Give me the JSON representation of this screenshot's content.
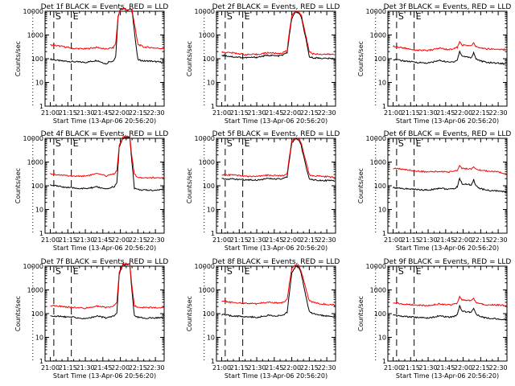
{
  "colors": {
    "events": "#000000",
    "lld": "#ff0000",
    "axes": "#000000"
  },
  "shared": {
    "ylabel": "Counts/sec",
    "xlabel": "Start Time (13-Apr-06 20:56:20)",
    "x_ticks": [
      "21:00",
      "21:15",
      "21:30",
      "21:45",
      "22:00",
      "22:15",
      "22:30"
    ],
    "y_ticks": [
      "1",
      "10",
      "100",
      "1000",
      "10000"
    ],
    "markers": [
      "S",
      "E"
    ]
  },
  "chart_data": [
    {
      "type": "line",
      "title": "Det 1f BLACK = Events, RED = LLD",
      "ylim": [
        1,
        10000
      ],
      "yscale": "log",
      "x_unit": "minutes after 21:00",
      "xlim": [
        0,
        97
      ],
      "event_lines": [
        -15,
        3,
        18
      ],
      "markers": {
        "S": 3,
        "E": 18
      },
      "series": [
        {
          "name": "Events",
          "color": "#000000",
          "x": [
            0,
            10,
            20,
            30,
            40,
            48,
            50,
            54,
            56,
            58,
            60,
            63,
            66,
            68,
            70,
            73,
            75,
            78,
            80,
            85,
            90,
            97
          ],
          "y": [
            95,
            80,
            75,
            70,
            85,
            60,
            75,
            80,
            120,
            5500,
            12000,
            13000,
            11000,
            12000,
            12000,
            500,
            90,
            85,
            80,
            80,
            75,
            70
          ]
        },
        {
          "name": "LLD",
          "color": "#ff0000",
          "x": [
            0,
            10,
            20,
            30,
            40,
            48,
            50,
            54,
            56,
            58,
            60,
            63,
            66,
            68,
            70,
            73,
            75,
            78,
            80,
            85,
            90,
            97
          ],
          "y": [
            380,
            330,
            270,
            260,
            300,
            250,
            270,
            290,
            450,
            6000,
            12000,
            13000,
            11000,
            12000,
            12000,
            1500,
            400,
            350,
            310,
            300,
            280,
            270
          ]
        }
      ]
    },
    {
      "type": "line",
      "title": "Det 2f BLACK = Events, RED = LLD",
      "ylim": [
        1,
        10000
      ],
      "yscale": "log",
      "x_unit": "minutes after 21:00",
      "xlim": [
        0,
        97
      ],
      "event_lines": [
        -15,
        3,
        18
      ],
      "markers": {
        "S": 3,
        "E": 18
      },
      "series": [
        {
          "name": "Events",
          "color": "#000000",
          "x": [
            0,
            10,
            20,
            30,
            40,
            48,
            52,
            56,
            58,
            60,
            63,
            65,
            68,
            72,
            75,
            78,
            85,
            97
          ],
          "y": [
            140,
            120,
            110,
            115,
            140,
            130,
            140,
            180,
            1000,
            5000,
            9000,
            9000,
            6000,
            700,
            120,
            110,
            105,
            100
          ]
        },
        {
          "name": "LLD",
          "color": "#ff0000",
          "x": [
            0,
            10,
            20,
            30,
            40,
            48,
            52,
            56,
            58,
            60,
            63,
            65,
            68,
            72,
            75,
            78,
            85,
            97
          ],
          "y": [
            190,
            175,
            150,
            150,
            180,
            165,
            175,
            220,
            1500,
            6500,
            9500,
            9500,
            7500,
            1000,
            200,
            160,
            155,
            150
          ]
        }
      ]
    },
    {
      "type": "line",
      "title": "Det 3f BLACK = Events, RED = LLD",
      "ylim": [
        1,
        10000
      ],
      "yscale": "log",
      "x_unit": "minutes after 21:00",
      "xlim": [
        0,
        97
      ],
      "event_lines": [
        -15,
        3,
        18
      ],
      "markers": {
        "S": 3,
        "E": 18
      },
      "series": [
        {
          "name": "Events",
          "color": "#000000",
          "x": [
            0,
            10,
            20,
            30,
            40,
            48,
            52,
            55,
            57,
            59,
            63,
            67,
            69,
            71,
            75,
            80,
            90,
            97
          ],
          "y": [
            95,
            80,
            70,
            65,
            85,
            70,
            75,
            90,
            200,
            130,
            120,
            110,
            180,
            100,
            80,
            70,
            65,
            60
          ]
        },
        {
          "name": "LLD",
          "color": "#ff0000",
          "x": [
            0,
            10,
            20,
            30,
            40,
            48,
            52,
            55,
            57,
            59,
            63,
            67,
            69,
            71,
            75,
            80,
            90,
            97
          ],
          "y": [
            330,
            280,
            230,
            220,
            280,
            240,
            270,
            300,
            500,
            380,
            360,
            350,
            450,
            320,
            280,
            260,
            250,
            240
          ]
        }
      ]
    },
    {
      "type": "line",
      "title": "Det 4f BLACK = Events, RED = LLD",
      "ylim": [
        1,
        10000
      ],
      "yscale": "log",
      "x_unit": "minutes after 21:00",
      "xlim": [
        0,
        97
      ],
      "event_lines": [
        -15,
        3,
        18
      ],
      "markers": {
        "S": 3,
        "E": 18
      },
      "series": [
        {
          "name": "Events",
          "color": "#000000",
          "x": [
            0,
            10,
            20,
            30,
            40,
            48,
            52,
            55,
            57,
            59,
            62,
            66,
            68,
            70,
            72,
            75,
            80,
            90,
            97
          ],
          "y": [
            110,
            90,
            80,
            75,
            90,
            70,
            85,
            95,
            130,
            4000,
            10000,
            11000,
            11000,
            900,
            80,
            70,
            65,
            65,
            70
          ]
        },
        {
          "name": "LLD",
          "color": "#ff0000",
          "x": [
            0,
            10,
            20,
            30,
            40,
            48,
            52,
            55,
            57,
            59,
            62,
            66,
            68,
            70,
            72,
            75,
            80,
            90,
            97
          ],
          "y": [
            320,
            280,
            250,
            260,
            320,
            260,
            300,
            320,
            450,
            5000,
            11000,
            12000,
            12000,
            1500,
            300,
            230,
            220,
            220,
            210
          ]
        }
      ]
    },
    {
      "type": "line",
      "title": "Det 5f BLACK = Events, RED = LLD",
      "ylim": [
        1,
        10000
      ],
      "yscale": "log",
      "x_unit": "minutes after 21:00",
      "xlim": [
        0,
        97
      ],
      "event_lines": [
        -15,
        3,
        18
      ],
      "markers": {
        "S": 3,
        "E": 18
      },
      "series": [
        {
          "name": "Events",
          "color": "#000000",
          "x": [
            0,
            10,
            20,
            30,
            40,
            48,
            52,
            56,
            58,
            60,
            63,
            66,
            68,
            72,
            75,
            78,
            85,
            97
          ],
          "y": [
            200,
            190,
            180,
            175,
            200,
            190,
            195,
            230,
            1300,
            6500,
            9500,
            9000,
            5000,
            700,
            200,
            180,
            170,
            160
          ]
        },
        {
          "name": "LLD",
          "color": "#ff0000",
          "x": [
            0,
            10,
            20,
            30,
            40,
            48,
            52,
            56,
            58,
            60,
            63,
            66,
            68,
            72,
            75,
            78,
            85,
            97
          ],
          "y": [
            300,
            280,
            250,
            245,
            280,
            260,
            270,
            320,
            1800,
            8000,
            10000,
            10000,
            6500,
            1100,
            300,
            260,
            250,
            230
          ]
        }
      ]
    },
    {
      "type": "line",
      "title": "Det 6f BLACK = Events, RED = LLD",
      "ylim": [
        1,
        10000
      ],
      "yscale": "log",
      "x_unit": "minutes after 21:00",
      "xlim": [
        0,
        97
      ],
      "event_lines": [
        -15,
        3,
        18
      ],
      "markers": {
        "S": 3,
        "E": 18
      },
      "series": [
        {
          "name": "Events",
          "color": "#000000",
          "x": [
            0,
            10,
            20,
            30,
            40,
            48,
            52,
            55,
            57,
            59,
            63,
            67,
            69,
            71,
            75,
            80,
            90,
            97
          ],
          "y": [
            85,
            75,
            70,
            65,
            80,
            70,
            75,
            90,
            210,
            120,
            115,
            110,
            180,
            95,
            75,
            65,
            60,
            55
          ]
        },
        {
          "name": "LLD",
          "color": "#ff0000",
          "x": [
            0,
            10,
            20,
            30,
            40,
            48,
            52,
            55,
            57,
            59,
            63,
            67,
            69,
            71,
            75,
            80,
            90,
            97
          ],
          "y": [
            550,
            480,
            420,
            380,
            400,
            380,
            420,
            450,
            700,
            550,
            520,
            500,
            600,
            480,
            450,
            420,
            380,
            320
          ]
        }
      ]
    },
    {
      "type": "line",
      "title": "Det 7f BLACK = Events, RED = LLD",
      "ylim": [
        1,
        10000
      ],
      "yscale": "log",
      "x_unit": "minutes after 21:00",
      "xlim": [
        0,
        97
      ],
      "event_lines": [
        -15,
        3,
        18
      ],
      "markers": {
        "S": 3,
        "E": 18
      },
      "series": [
        {
          "name": "Events",
          "color": "#000000",
          "x": [
            0,
            10,
            20,
            30,
            40,
            48,
            52,
            55,
            57,
            59,
            62,
            66,
            68,
            70,
            72,
            75,
            80,
            90,
            97
          ],
          "y": [
            80,
            75,
            70,
            60,
            80,
            65,
            75,
            85,
            110,
            4500,
            11000,
            12000,
            12000,
            800,
            80,
            70,
            65,
            65,
            70
          ]
        },
        {
          "name": "LLD",
          "color": "#ff0000",
          "x": [
            0,
            10,
            20,
            30,
            40,
            48,
            52,
            55,
            57,
            59,
            62,
            66,
            68,
            70,
            72,
            75,
            80,
            90,
            97
          ],
          "y": [
            220,
            200,
            180,
            170,
            210,
            180,
            200,
            220,
            300,
            5500,
            12000,
            13000,
            13000,
            1300,
            220,
            190,
            180,
            180,
            175
          ]
        }
      ]
    },
    {
      "type": "line",
      "title": "Det 8f BLACK = Events, RED = LLD",
      "ylim": [
        1,
        10000
      ],
      "yscale": "log",
      "x_unit": "minutes after 21:00",
      "xlim": [
        0,
        97
      ],
      "event_lines": [
        -15,
        3,
        18
      ],
      "markers": {
        "S": 3,
        "E": 18
      },
      "series": [
        {
          "name": "Events",
          "color": "#000000",
          "x": [
            0,
            10,
            20,
            30,
            40,
            48,
            52,
            56,
            58,
            60,
            63,
            66,
            68,
            72,
            75,
            78,
            85,
            97
          ],
          "y": [
            90,
            80,
            75,
            70,
            85,
            80,
            85,
            110,
            800,
            5000,
            9500,
            9500,
            5000,
            600,
            120,
            100,
            85,
            75
          ]
        },
        {
          "name": "LLD",
          "color": "#ff0000",
          "x": [
            0,
            10,
            20,
            30,
            40,
            48,
            52,
            56,
            58,
            60,
            63,
            66,
            68,
            72,
            75,
            78,
            85,
            97
          ],
          "y": [
            340,
            300,
            270,
            260,
            310,
            280,
            300,
            380,
            2000,
            8000,
            11000,
            11000,
            6500,
            1200,
            350,
            300,
            260,
            230
          ]
        }
      ]
    },
    {
      "type": "line",
      "title": "Det 9f BLACK = Events, RED = LLD",
      "ylim": [
        1,
        10000
      ],
      "yscale": "log",
      "x_unit": "minutes after 21:00",
      "xlim": [
        0,
        97
      ],
      "event_lines": [
        -15,
        3,
        18
      ],
      "markers": {
        "S": 3,
        "E": 18
      },
      "series": [
        {
          "name": "Events",
          "color": "#000000",
          "x": [
            0,
            10,
            20,
            30,
            40,
            48,
            52,
            55,
            57,
            59,
            63,
            67,
            69,
            71,
            75,
            80,
            90,
            97
          ],
          "y": [
            85,
            75,
            70,
            65,
            80,
            70,
            75,
            90,
            220,
            130,
            120,
            110,
            170,
            95,
            75,
            65,
            60,
            55
          ]
        },
        {
          "name": "LLD",
          "color": "#ff0000",
          "x": [
            0,
            10,
            20,
            30,
            40,
            48,
            52,
            55,
            57,
            59,
            63,
            67,
            69,
            71,
            75,
            80,
            90,
            97
          ],
          "y": [
            290,
            250,
            230,
            220,
            260,
            230,
            250,
            280,
            520,
            380,
            360,
            350,
            450,
            300,
            260,
            240,
            230,
            220
          ]
        }
      ]
    }
  ]
}
